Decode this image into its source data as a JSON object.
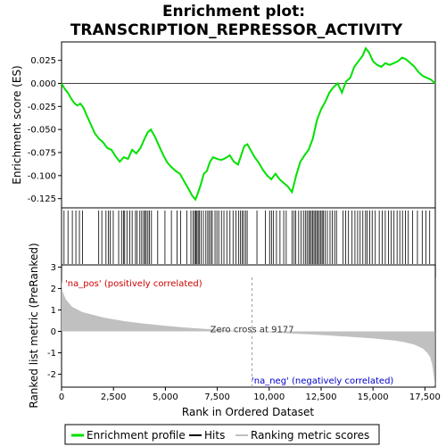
{
  "chart_data": {
    "type": "line",
    "title_line1": "Enrichment plot:",
    "title_line2": "TRANSCRIPTION_REPRESSOR_ACTIVITY",
    "top_panel": {
      "ylabel": "Enrichment score (ES)",
      "ylim": [
        -0.135,
        0.045
      ],
      "yticks": [
        0.025,
        0.0,
        -0.025,
        -0.05,
        -0.075,
        -0.1,
        -0.125
      ],
      "ytick_labels": [
        "0.025",
        "0.000",
        "-0.025",
        "-0.050",
        "-0.075",
        "-0.100",
        "-0.125"
      ],
      "es_curve": [
        [
          0,
          0.0
        ],
        [
          150,
          -0.006
        ],
        [
          300,
          -0.01
        ],
        [
          450,
          -0.016
        ],
        [
          600,
          -0.021
        ],
        [
          750,
          -0.024
        ],
        [
          900,
          -0.022
        ],
        [
          1050,
          -0.026
        ],
        [
          1200,
          -0.034
        ],
        [
          1400,
          -0.044
        ],
        [
          1600,
          -0.054
        ],
        [
          1800,
          -0.06
        ],
        [
          2000,
          -0.064
        ],
        [
          2200,
          -0.07
        ],
        [
          2400,
          -0.072
        ],
        [
          2600,
          -0.079
        ],
        [
          2800,
          -0.085
        ],
        [
          3000,
          -0.08
        ],
        [
          3200,
          -0.082
        ],
        [
          3400,
          -0.072
        ],
        [
          3600,
          -0.076
        ],
        [
          3800,
          -0.07
        ],
        [
          4000,
          -0.06
        ],
        [
          4150,
          -0.053
        ],
        [
          4300,
          -0.05
        ],
        [
          4500,
          -0.058
        ],
        [
          4700,
          -0.068
        ],
        [
          4900,
          -0.078
        ],
        [
          5100,
          -0.086
        ],
        [
          5300,
          -0.091
        ],
        [
          5500,
          -0.095
        ],
        [
          5700,
          -0.098
        ],
        [
          5900,
          -0.106
        ],
        [
          6100,
          -0.114
        ],
        [
          6300,
          -0.122
        ],
        [
          6450,
          -0.126
        ],
        [
          6550,
          -0.12
        ],
        [
          6700,
          -0.11
        ],
        [
          6850,
          -0.098
        ],
        [
          7000,
          -0.095
        ],
        [
          7150,
          -0.085
        ],
        [
          7300,
          -0.08
        ],
        [
          7500,
          -0.082
        ],
        [
          7700,
          -0.083
        ],
        [
          7900,
          -0.081
        ],
        [
          8100,
          -0.078
        ],
        [
          8300,
          -0.085
        ],
        [
          8500,
          -0.088
        ],
        [
          8650,
          -0.078
        ],
        [
          8800,
          -0.068
        ],
        [
          8950,
          -0.066
        ],
        [
          9100,
          -0.072
        ],
        [
          9300,
          -0.08
        ],
        [
          9500,
          -0.086
        ],
        [
          9700,
          -0.094
        ],
        [
          9900,
          -0.1
        ],
        [
          10100,
          -0.104
        ],
        [
          10300,
          -0.098
        ],
        [
          10500,
          -0.104
        ],
        [
          10700,
          -0.108
        ],
        [
          10900,
          -0.112
        ],
        [
          11100,
          -0.118
        ],
        [
          11300,
          -0.1
        ],
        [
          11500,
          -0.085
        ],
        [
          11700,
          -0.078
        ],
        [
          11900,
          -0.072
        ],
        [
          12100,
          -0.06
        ],
        [
          12300,
          -0.04
        ],
        [
          12500,
          -0.028
        ],
        [
          12700,
          -0.02
        ],
        [
          12900,
          -0.01
        ],
        [
          13100,
          -0.004
        ],
        [
          13300,
          0.0
        ],
        [
          13500,
          -0.01
        ],
        [
          13700,
          0.002
        ],
        [
          13900,
          0.006
        ],
        [
          14100,
          0.018
        ],
        [
          14300,
          0.024
        ],
        [
          14500,
          0.03
        ],
        [
          14650,
          0.038
        ],
        [
          14800,
          0.034
        ],
        [
          15000,
          0.024
        ],
        [
          15200,
          0.02
        ],
        [
          15400,
          0.018
        ],
        [
          15600,
          0.022
        ],
        [
          15800,
          0.02
        ],
        [
          16000,
          0.022
        ],
        [
          16200,
          0.024
        ],
        [
          16400,
          0.028
        ],
        [
          16600,
          0.026
        ],
        [
          16800,
          0.022
        ],
        [
          17000,
          0.018
        ],
        [
          17200,
          0.012
        ],
        [
          17400,
          0.008
        ],
        [
          17600,
          0.006
        ],
        [
          17800,
          0.004
        ],
        [
          17990,
          0.0
        ]
      ],
      "line_color": "#00e000"
    },
    "hits": [
      120,
      310,
      520,
      690,
      860,
      1010,
      1790,
      1940,
      2140,
      2260,
      2340,
      2490,
      2750,
      2890,
      2980,
      3040,
      3150,
      3290,
      3400,
      3560,
      3640,
      3770,
      3860,
      3950,
      4020,
      4080,
      4160,
      4230,
      4330,
      4630,
      4980,
      5290,
      5560,
      5740,
      6030,
      6230,
      6340,
      6410,
      6470,
      6520,
      6580,
      6640,
      6720,
      6830,
      6950,
      7040,
      7110,
      7190,
      7260,
      7390,
      7480,
      7570,
      7700,
      7820,
      7960,
      8110,
      8260,
      8400,
      8520,
      8610,
      8700,
      8770,
      8860,
      8940,
      9410,
      9820,
      10020,
      10110,
      10210,
      10350,
      10520,
      10700,
      10820,
      11100,
      11200,
      11280,
      11420,
      11540,
      11650,
      11740,
      11820,
      11900,
      11960,
      12030,
      12100,
      12160,
      12230,
      12290,
      12350,
      12420,
      12490,
      12550,
      12610,
      12690,
      12800,
      12930,
      13040,
      13150,
      13240,
      13560,
      13680,
      13820,
      13990,
      14130,
      14260,
      14380,
      14510,
      14640,
      14720,
      14840,
      14960,
      15110,
      15300,
      15440,
      15590,
      15740,
      15880,
      16010,
      16160,
      16290,
      16420,
      16560,
      16700,
      16910,
      17140,
      17370,
      17550,
      17730
    ],
    "bottom_panel": {
      "ylabel": "Ranked list metric (PreRanked)",
      "ylim": [
        -2.6,
        3.1
      ],
      "yticks": [
        3,
        2,
        1,
        0,
        -1,
        -2
      ],
      "ytick_labels": [
        "3",
        "2",
        "1",
        "0",
        "-1",
        "-2"
      ],
      "metric_curve": [
        [
          0,
          2.4
        ],
        [
          50,
          1.85
        ],
        [
          200,
          1.5
        ],
        [
          500,
          1.15
        ],
        [
          1000,
          0.9
        ],
        [
          2000,
          0.65
        ],
        [
          3000,
          0.48
        ],
        [
          4000,
          0.36
        ],
        [
          5000,
          0.26
        ],
        [
          6000,
          0.18
        ],
        [
          7000,
          0.11
        ],
        [
          8000,
          0.05
        ],
        [
          9177,
          0.0
        ],
        [
          10000,
          -0.04
        ],
        [
          11000,
          -0.09
        ],
        [
          12000,
          -0.14
        ],
        [
          13000,
          -0.2
        ],
        [
          14000,
          -0.26
        ],
        [
          15000,
          -0.33
        ],
        [
          16000,
          -0.42
        ],
        [
          16500,
          -0.5
        ],
        [
          17000,
          -0.62
        ],
        [
          17400,
          -0.8
        ],
        [
          17600,
          -0.98
        ],
        [
          17750,
          -1.2
        ],
        [
          17850,
          -1.55
        ],
        [
          17920,
          -2.0
        ],
        [
          17990,
          -2.55
        ]
      ],
      "zero_cross_label": "Zero cross at 9177",
      "zero_cross_x": 9177,
      "pos_label": "'na_pos' (positively correlated)",
      "neg_label": "'na_neg' (negatively correlated)",
      "pos_color": "#cc0000",
      "neg_color": "#0000cc",
      "fill_color": "#c0c0c0"
    },
    "xlabel": "Rank in Ordered Dataset",
    "xlim": [
      0,
      18000
    ],
    "xticks": [
      0,
      2500,
      5000,
      7500,
      10000,
      12500,
      15000,
      17500
    ],
    "xtick_labels": [
      "0",
      "2,500",
      "5,000",
      "7,500",
      "10,000",
      "12,500",
      "15,000",
      "17,500"
    ],
    "legend": {
      "placement": "bottom",
      "entries": [
        {
          "label": "Enrichment profile",
          "color": "#00e000"
        },
        {
          "label": "Hits",
          "color": "#000000"
        },
        {
          "label": "Ranking metric scores",
          "color": "#c0c0c0"
        }
      ]
    }
  }
}
